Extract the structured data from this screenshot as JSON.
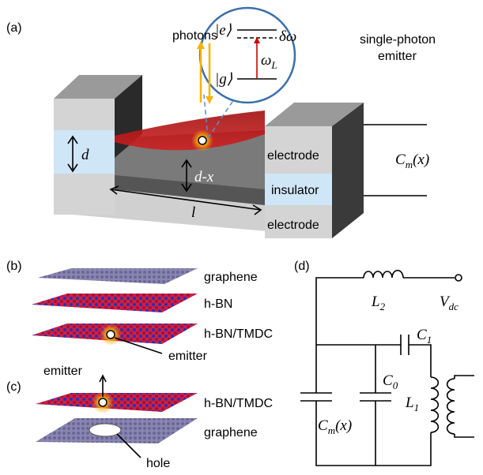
{
  "panel_a": {
    "label": "(a)",
    "photons": "photons",
    "ket_e": "|e⟩",
    "delta_omega": "δω",
    "omega": {
      "main": "ω",
      "sub": "L"
    },
    "ket_g": "|g⟩",
    "emitter_label": [
      "single-photon",
      "emitter"
    ],
    "d": "d",
    "d_minus_x": "d-x",
    "l": "l",
    "layers": [
      "electrode",
      "insulator",
      "electrode"
    ],
    "capacitance": {
      "main": "C",
      "sub": "m",
      "rest": "(x)"
    }
  },
  "panel_b": {
    "label": "(b)",
    "layers": [
      "graphene",
      "h-BN",
      "h-BN/TMDC"
    ],
    "emitter": "emitter"
  },
  "panel_c": {
    "label": "(c)",
    "layers": [
      "h-BN/TMDC",
      "graphene"
    ],
    "emitter": "emitter",
    "hole": "hole"
  },
  "panel_d": {
    "label": "(d)",
    "L2": {
      "main": "L",
      "sub": "2"
    },
    "Vdc": {
      "main": "V",
      "sub": "dc"
    },
    "C1": {
      "main": "C",
      "sub": "1"
    },
    "C0": {
      "main": "C",
      "sub": "0"
    },
    "L1": {
      "main": "L",
      "sub": "1"
    },
    "Cm": {
      "main": "C",
      "sub": "m",
      "rest": "(x)"
    }
  }
}
